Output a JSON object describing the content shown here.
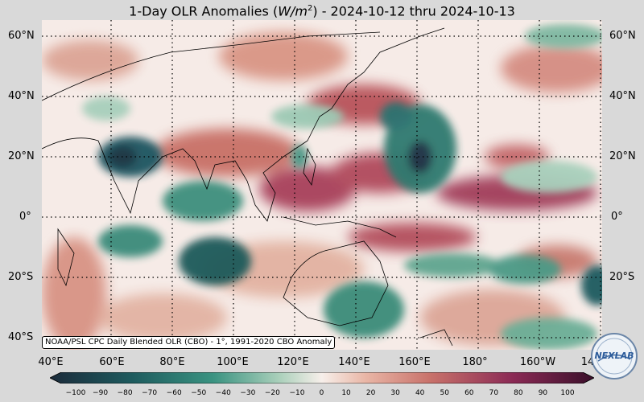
{
  "title": {
    "prefix": "1-Day OLR Anomalies (",
    "unit_base": "W/m",
    "unit_exp": "2",
    "suffix": ") - 2024-10-12 thru 2024-10-13"
  },
  "lat_labels": [
    "60°N",
    "40°N",
    "20°N",
    "0°",
    "20°S",
    "40°S"
  ],
  "lon_labels": [
    "40°E",
    "60°E",
    "80°E",
    "100°E",
    "120°E",
    "140°E",
    "160°E",
    "180°",
    "160°W",
    "14"
  ],
  "source_note": "NOAA/PSL CPC Daily Blended OLR (CBO) - 1°, 1991-2020 CBO Anomaly",
  "colorbar": {
    "ticks": [
      "−100",
      "−90",
      "−80",
      "−70",
      "−60",
      "−50",
      "−40",
      "−30",
      "−20",
      "−10",
      "0",
      "10",
      "20",
      "30",
      "40",
      "50",
      "60",
      "70",
      "80",
      "90",
      "100"
    ],
    "colors": {
      "min": "#1b2b3b",
      "neg_strong": "#1e5b5e",
      "neg_mid": "#3a9381",
      "neg_light": "#a9cfba",
      "zero": "#f7efea",
      "pos_light": "#e9b6a6",
      "pos_mid": "#c8716a",
      "pos_strong": "#8b2a55",
      "max": "#3a0f2a"
    }
  },
  "logo_text": "NEXLAB"
}
